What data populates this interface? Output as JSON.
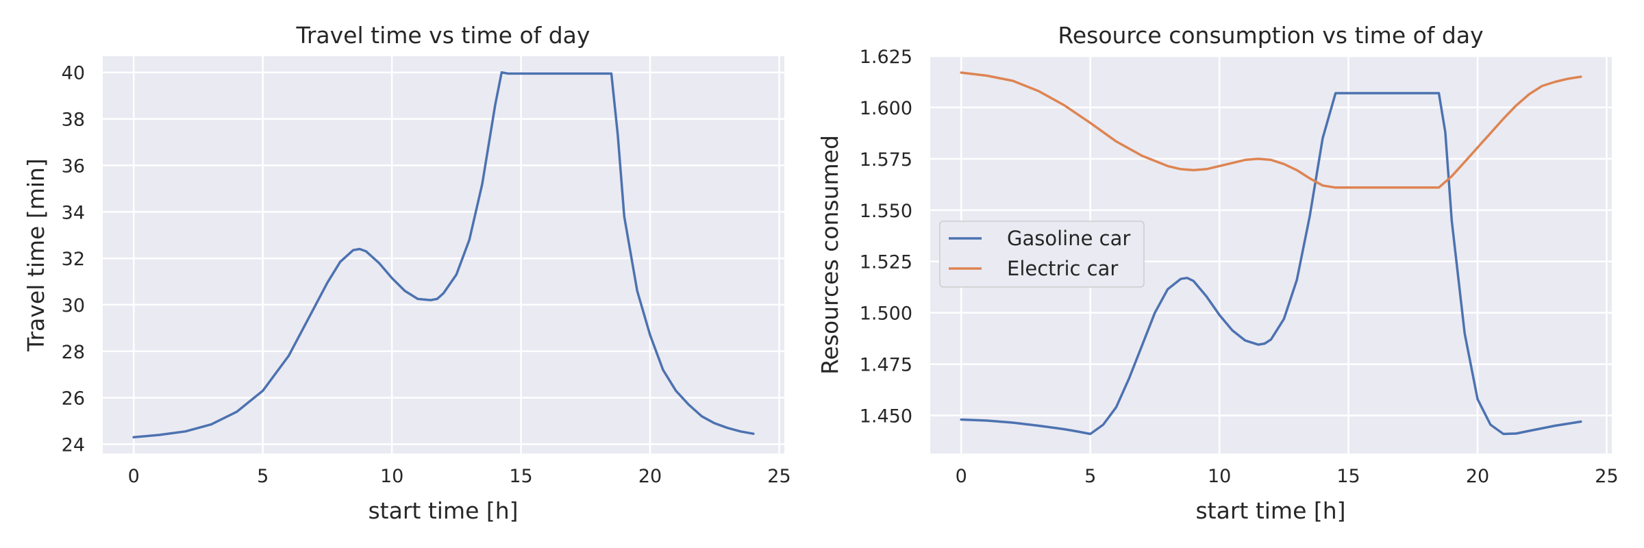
{
  "charts": [
    {
      "title": "Travel time vs time of day",
      "xlabel": "start time [h]",
      "ylabel": "Travel time [min]",
      "xticks": [
        "0",
        "5",
        "10",
        "15",
        "20",
        "25"
      ],
      "yticks": [
        "24",
        "26",
        "28",
        "30",
        "32",
        "34",
        "36",
        "38",
        "40"
      ]
    },
    {
      "title": "Resource consumption vs time of day",
      "xlabel": "start time [h]",
      "ylabel": "Resources consumed",
      "xticks": [
        "0",
        "5",
        "10",
        "15",
        "20",
        "25"
      ],
      "yticks": [
        "1.450",
        "1.475",
        "1.500",
        "1.525",
        "1.550",
        "1.575",
        "1.600",
        "1.625"
      ],
      "legend": [
        "Gasoline car",
        "Electric car"
      ]
    }
  ],
  "colors": {
    "blue": "#4c72b0",
    "orange": "#dd8452",
    "axes_bg": "#eaeaf2",
    "grid": "#ffffff"
  },
  "chart_data": [
    {
      "type": "line",
      "title": "Travel time vs time of day",
      "xlabel": "start time [h]",
      "ylabel": "Travel time [min]",
      "xlim": [
        -1.2,
        25.2
      ],
      "ylim": [
        23.6,
        40.7
      ],
      "grid": true,
      "series": [
        {
          "color": "#4c72b0",
          "x": [
            0,
            1,
            2,
            3,
            4,
            5,
            6,
            7,
            7.5,
            8,
            8.5,
            8.75,
            9,
            9.5,
            10,
            10.5,
            11,
            11.5,
            11.75,
            12,
            12.5,
            13,
            13.5,
            14,
            14.25,
            14.5,
            15,
            16,
            17,
            18,
            18.5,
            18.75,
            19,
            19.5,
            20,
            20.5,
            21,
            21.5,
            22,
            22.5,
            23,
            23.5,
            24
          ],
          "y": [
            24.3,
            24.4,
            24.55,
            24.85,
            25.4,
            26.3,
            27.8,
            29.9,
            30.95,
            31.85,
            32.35,
            32.4,
            32.3,
            31.8,
            31.15,
            30.6,
            30.25,
            30.2,
            30.25,
            30.5,
            31.3,
            32.8,
            35.2,
            38.6,
            40.0,
            39.95,
            39.95,
            39.95,
            39.95,
            39.95,
            39.95,
            37.3,
            33.8,
            30.6,
            28.7,
            27.2,
            26.3,
            25.7,
            25.2,
            24.9,
            24.7,
            24.55,
            24.45
          ]
        }
      ]
    },
    {
      "type": "line",
      "title": "Resource consumption vs time of day",
      "xlabel": "start time [h]",
      "ylabel": "Resources consumed",
      "xlim": [
        -1.2,
        25.2
      ],
      "ylim": [
        1.4315,
        1.625
      ],
      "grid": true,
      "legend_position": "center-left",
      "series": [
        {
          "name": "Gasoline car",
          "color": "#4c72b0",
          "x": [
            0,
            1,
            2,
            3,
            4,
            4.5,
            5,
            5.5,
            6,
            6.5,
            7,
            7.5,
            8,
            8.5,
            8.75,
            9,
            9.5,
            10,
            10.5,
            11,
            11.5,
            11.75,
            12,
            12.5,
            13,
            13.5,
            14,
            14.5,
            15,
            16,
            17,
            18,
            18.5,
            18.75,
            19,
            19.5,
            20,
            20.5,
            21,
            21.5,
            22,
            23,
            24
          ],
          "y": [
            1.448,
            1.4475,
            1.4465,
            1.445,
            1.4433,
            1.4422,
            1.441,
            1.4455,
            1.454,
            1.468,
            1.484,
            1.5,
            1.5115,
            1.5165,
            1.517,
            1.5155,
            1.508,
            1.499,
            1.4915,
            1.4865,
            1.4845,
            1.485,
            1.487,
            1.497,
            1.516,
            1.547,
            1.585,
            1.607,
            1.607,
            1.607,
            1.607,
            1.607,
            1.607,
            1.588,
            1.545,
            1.49,
            1.458,
            1.4455,
            1.441,
            1.4412,
            1.4425,
            1.445,
            1.447
          ]
        },
        {
          "name": "Electric car",
          "color": "#dd8452",
          "x": [
            0,
            1,
            2,
            3,
            4,
            5,
            6,
            7,
            7.5,
            8,
            8.5,
            9,
            9.5,
            10,
            10.5,
            11,
            11.5,
            12,
            12.5,
            13,
            13.5,
            14,
            14.5,
            15,
            16,
            17,
            18,
            18.5,
            19,
            19.5,
            20,
            20.5,
            21,
            21.5,
            22,
            22.5,
            23,
            23.5,
            24
          ],
          "y": [
            1.617,
            1.6155,
            1.613,
            1.608,
            1.601,
            1.5925,
            1.5835,
            1.5765,
            1.574,
            1.5715,
            1.57,
            1.5695,
            1.57,
            1.5715,
            1.573,
            1.5745,
            1.575,
            1.5745,
            1.5725,
            1.5695,
            1.5655,
            1.562,
            1.561,
            1.561,
            1.561,
            1.561,
            1.561,
            1.561,
            1.5665,
            1.5735,
            1.5805,
            1.5875,
            1.5945,
            1.601,
            1.6065,
            1.6105,
            1.6125,
            1.614,
            1.615
          ]
        }
      ]
    }
  ]
}
